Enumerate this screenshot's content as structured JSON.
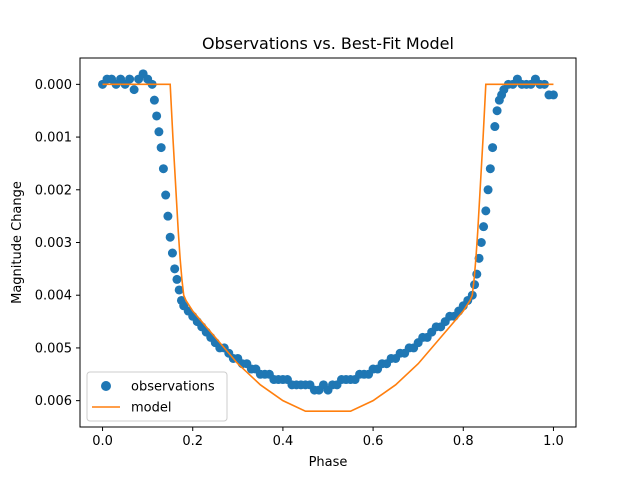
{
  "chart_data": {
    "type": "scatter",
    "title": "Observations vs. Best-Fit Model",
    "xlabel": "Phase",
    "ylabel": "Magnitude Change",
    "xlim": [
      -0.05,
      1.05
    ],
    "ylim": [
      0.0065,
      -0.0005
    ],
    "y_inverted": true,
    "xticks": [
      0.0,
      0.2,
      0.4,
      0.6,
      0.8,
      1.0
    ],
    "xtick_labels": [
      "0.0",
      "0.2",
      "0.4",
      "0.6",
      "0.8",
      "1.0"
    ],
    "yticks": [
      0.0,
      0.001,
      0.002,
      0.003,
      0.004,
      0.005,
      0.006
    ],
    "ytick_labels": [
      "0.000",
      "0.001",
      "0.002",
      "0.003",
      "0.004",
      "0.005",
      "0.006"
    ],
    "grid": false,
    "legend_position": "lower-left",
    "series": [
      {
        "name": "observations",
        "kind": "scatter",
        "color": "#1f77b4",
        "x": [
          0.0,
          0.01,
          0.02,
          0.03,
          0.04,
          0.05,
          0.06,
          0.07,
          0.08,
          0.09,
          0.1,
          0.11,
          0.115,
          0.12,
          0.125,
          0.13,
          0.135,
          0.14,
          0.145,
          0.15,
          0.155,
          0.16,
          0.165,
          0.17,
          0.175,
          0.18,
          0.19,
          0.2,
          0.21,
          0.22,
          0.23,
          0.24,
          0.25,
          0.26,
          0.27,
          0.28,
          0.29,
          0.3,
          0.31,
          0.32,
          0.33,
          0.34,
          0.35,
          0.36,
          0.37,
          0.38,
          0.39,
          0.4,
          0.41,
          0.42,
          0.43,
          0.44,
          0.45,
          0.46,
          0.47,
          0.48,
          0.49,
          0.5,
          0.51,
          0.52,
          0.53,
          0.54,
          0.55,
          0.56,
          0.57,
          0.58,
          0.59,
          0.6,
          0.61,
          0.62,
          0.63,
          0.64,
          0.65,
          0.66,
          0.67,
          0.68,
          0.69,
          0.7,
          0.71,
          0.72,
          0.73,
          0.74,
          0.75,
          0.76,
          0.77,
          0.78,
          0.79,
          0.8,
          0.81,
          0.82,
          0.825,
          0.83,
          0.835,
          0.84,
          0.845,
          0.85,
          0.855,
          0.86,
          0.865,
          0.87,
          0.875,
          0.88,
          0.885,
          0.89,
          0.9,
          0.91,
          0.92,
          0.93,
          0.94,
          0.95,
          0.96,
          0.97,
          0.98,
          0.99,
          1.0
        ],
        "y": [
          0.0,
          -0.0001,
          -0.0001,
          0.0,
          -0.0001,
          0.0,
          -0.0001,
          0.0001,
          -0.0001,
          -0.0002,
          -0.0001,
          0.0,
          0.0003,
          0.0006,
          0.0009,
          0.0012,
          0.0016,
          0.0021,
          0.0025,
          0.0029,
          0.0032,
          0.0035,
          0.0037,
          0.0039,
          0.0041,
          0.0042,
          0.0043,
          0.0044,
          0.0045,
          0.0046,
          0.0047,
          0.0048,
          0.0049,
          0.005,
          0.005,
          0.0051,
          0.0052,
          0.0052,
          0.0053,
          0.0053,
          0.0054,
          0.0054,
          0.0055,
          0.0055,
          0.0055,
          0.0056,
          0.0056,
          0.0056,
          0.0056,
          0.0057,
          0.0057,
          0.0057,
          0.0057,
          0.0057,
          0.0058,
          0.0058,
          0.0057,
          0.0058,
          0.0057,
          0.0057,
          0.0056,
          0.0056,
          0.0056,
          0.0056,
          0.0055,
          0.0055,
          0.0055,
          0.0054,
          0.0054,
          0.0053,
          0.0053,
          0.0052,
          0.0052,
          0.0051,
          0.0051,
          0.005,
          0.005,
          0.0049,
          0.0048,
          0.0048,
          0.0047,
          0.0046,
          0.0046,
          0.0045,
          0.0044,
          0.0044,
          0.0043,
          0.0042,
          0.0041,
          0.004,
          0.0038,
          0.0036,
          0.0033,
          0.003,
          0.0027,
          0.0024,
          0.002,
          0.0016,
          0.0012,
          0.0008,
          0.0005,
          0.0003,
          0.0002,
          0.0001,
          0.0,
          0.0,
          -0.0001,
          0.0,
          0.0,
          0.0,
          -0.0001,
          0.0,
          0.0,
          0.0002,
          0.0002
        ]
      },
      {
        "name": "model",
        "kind": "line",
        "color": "#ff7f0e",
        "x": [
          0.0,
          0.15,
          0.153,
          0.156,
          0.16,
          0.164,
          0.168,
          0.172,
          0.176,
          0.18,
          0.185,
          0.2,
          0.25,
          0.3,
          0.35,
          0.4,
          0.45,
          0.5,
          0.55,
          0.6,
          0.65,
          0.7,
          0.75,
          0.8,
          0.815,
          0.82,
          0.824,
          0.828,
          0.832,
          0.836,
          0.84,
          0.844,
          0.847,
          0.85,
          1.0
        ],
        "y": [
          0.0,
          0.0,
          0.0005,
          0.001,
          0.0016,
          0.0022,
          0.0028,
          0.0033,
          0.0037,
          0.004,
          0.0041,
          0.0043,
          0.0048,
          0.0053,
          0.0057,
          0.006,
          0.0062,
          0.0062,
          0.0062,
          0.006,
          0.0057,
          0.0053,
          0.0048,
          0.0043,
          0.0041,
          0.004,
          0.0037,
          0.0033,
          0.0028,
          0.0022,
          0.0016,
          0.001,
          0.0005,
          0.0,
          0.0
        ]
      }
    ]
  }
}
